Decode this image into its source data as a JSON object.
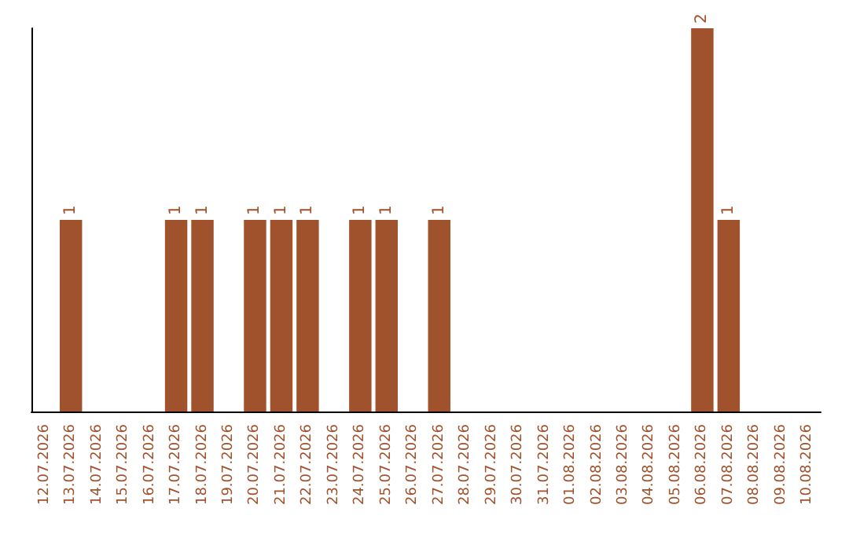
{
  "chart_data": {
    "type": "bar",
    "categories": [
      "12.07.2026",
      "13.07.2026",
      "14.07.2026",
      "15.07.2026",
      "16.07.2026",
      "17.07.2026",
      "18.07.2026",
      "19.07.2026",
      "20.07.2026",
      "21.07.2026",
      "22.07.2026",
      "23.07.2026",
      "24.07.2026",
      "25.07.2026",
      "26.07.2026",
      "27.07.2026",
      "28.07.2026",
      "29.07.2026",
      "30.07.2026",
      "31.07.2026",
      "01.08.2026",
      "02.08.2026",
      "03.08.2026",
      "04.08.2026",
      "05.08.2026",
      "06.08.2026",
      "07.08.2026",
      "08.08.2026",
      "09.08.2026",
      "10.08.2026"
    ],
    "values": [
      0,
      1,
      0,
      0,
      0,
      1,
      1,
      0,
      1,
      1,
      1,
      0,
      1,
      1,
      0,
      1,
      0,
      0,
      0,
      0,
      0,
      0,
      0,
      0,
      0,
      2,
      1,
      0,
      0,
      0
    ],
    "value_labels": [
      null,
      "1",
      null,
      null,
      null,
      "1",
      "1",
      null,
      "1",
      "1",
      "1",
      null,
      "1",
      "1",
      null,
      "1",
      null,
      null,
      null,
      null,
      null,
      null,
      null,
      null,
      null,
      "2",
      "1",
      null,
      null,
      null
    ],
    "color": "#a0522d",
    "tick_labels": "x"
  }
}
